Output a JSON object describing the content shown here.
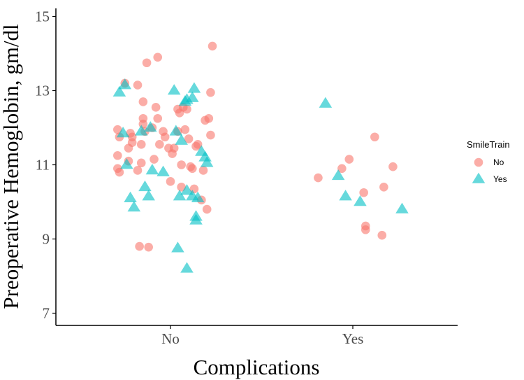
{
  "chart_data": {
    "type": "scatter",
    "title": "",
    "xlabel": "Complications",
    "ylabel": "Preoperative Hemoglobin, gm/dl",
    "categories": [
      "No",
      "Yes"
    ],
    "yticks": [
      7,
      9,
      11,
      13,
      15
    ],
    "ylim": [
      6.9,
      15.3
    ],
    "grid": false,
    "legend": {
      "title": "SmileTrain",
      "placement": "right",
      "entries": [
        {
          "label": "No",
          "color": "#f8766d",
          "shape": "circle"
        },
        {
          "label": "Yes",
          "color": "#00bfc4",
          "shape": "triangle"
        }
      ]
    },
    "series": [
      {
        "name": "No",
        "color": "#f8766d",
        "shape": "circle",
        "points": [
          {
            "x": 0.71,
            "y": 11.95
          },
          {
            "x": 0.72,
            "y": 11.75
          },
          {
            "x": 0.71,
            "y": 11.25
          },
          {
            "x": 0.71,
            "y": 10.9
          },
          {
            "x": 0.72,
            "y": 10.8
          },
          {
            "x": 0.75,
            "y": 13.2
          },
          {
            "x": 0.77,
            "y": 11.45
          },
          {
            "x": 0.77,
            "y": 11.1
          },
          {
            "x": 0.78,
            "y": 11.85
          },
          {
            "x": 0.79,
            "y": 11.6
          },
          {
            "x": 0.79,
            "y": 11.75
          },
          {
            "x": 0.82,
            "y": 13.15
          },
          {
            "x": 0.82,
            "y": 10.85
          },
          {
            "x": 0.84,
            "y": 11.55
          },
          {
            "x": 0.84,
            "y": 11.05
          },
          {
            "x": 0.85,
            "y": 12.7
          },
          {
            "x": 0.85,
            "y": 12.25
          },
          {
            "x": 0.85,
            "y": 12.1
          },
          {
            "x": 0.86,
            "y": 11.9
          },
          {
            "x": 0.87,
            "y": 13.75
          },
          {
            "x": 0.83,
            "y": 8.8
          },
          {
            "x": 0.88,
            "y": 8.78
          },
          {
            "x": 0.9,
            "y": 12.0
          },
          {
            "x": 0.91,
            "y": 11.15
          },
          {
            "x": 0.92,
            "y": 12.55
          },
          {
            "x": 0.93,
            "y": 12.25
          },
          {
            "x": 0.93,
            "y": 13.9
          },
          {
            "x": 0.94,
            "y": 11.55
          },
          {
            "x": 0.96,
            "y": 11.9
          },
          {
            "x": 0.97,
            "y": 11.75
          },
          {
            "x": 0.99,
            "y": 11.45
          },
          {
            "x": 1.0,
            "y": 10.55
          },
          {
            "x": 1.01,
            "y": 11.3
          },
          {
            "x": 1.02,
            "y": 11.45
          },
          {
            "x": 1.04,
            "y": 12.5
          },
          {
            "x": 1.04,
            "y": 11.9
          },
          {
            "x": 1.05,
            "y": 12.4
          },
          {
            "x": 1.06,
            "y": 11.0
          },
          {
            "x": 1.06,
            "y": 10.4
          },
          {
            "x": 1.07,
            "y": 12.55
          },
          {
            "x": 1.08,
            "y": 11.95
          },
          {
            "x": 1.09,
            "y": 12.5
          },
          {
            "x": 1.1,
            "y": 11.7
          },
          {
            "x": 1.11,
            "y": 10.95
          },
          {
            "x": 1.12,
            "y": 10.9
          },
          {
            "x": 1.13,
            "y": 10.35
          },
          {
            "x": 1.14,
            "y": 11.5
          },
          {
            "x": 1.15,
            "y": 11.55
          },
          {
            "x": 1.17,
            "y": 10.05
          },
          {
            "x": 1.18,
            "y": 10.85
          },
          {
            "x": 1.19,
            "y": 12.2
          },
          {
            "x": 1.2,
            "y": 9.8
          },
          {
            "x": 1.21,
            "y": 12.25
          },
          {
            "x": 1.22,
            "y": 12.95
          },
          {
            "x": 1.22,
            "y": 11.8
          },
          {
            "x": 1.23,
            "y": 14.2
          },
          {
            "x": 1.81,
            "y": 10.65
          },
          {
            "x": 1.94,
            "y": 10.9
          },
          {
            "x": 1.98,
            "y": 11.15
          },
          {
            "x": 2.06,
            "y": 10.25
          },
          {
            "x": 2.07,
            "y": 9.35
          },
          {
            "x": 2.07,
            "y": 9.25
          },
          {
            "x": 2.12,
            "y": 11.75
          },
          {
            "x": 2.16,
            "y": 9.1
          },
          {
            "x": 2.17,
            "y": 10.4
          },
          {
            "x": 2.22,
            "y": 10.95
          }
        ]
      },
      {
        "name": "Yes",
        "color": "#00bfc4",
        "shape": "triangle",
        "points": [
          {
            "x": 0.72,
            "y": 12.95
          },
          {
            "x": 0.74,
            "y": 11.85
          },
          {
            "x": 0.75,
            "y": 13.15
          },
          {
            "x": 0.76,
            "y": 11.0
          },
          {
            "x": 0.78,
            "y": 10.1
          },
          {
            "x": 0.8,
            "y": 9.85
          },
          {
            "x": 0.84,
            "y": 11.9
          },
          {
            "x": 0.86,
            "y": 10.4
          },
          {
            "x": 0.88,
            "y": 10.15
          },
          {
            "x": 0.89,
            "y": 12.0
          },
          {
            "x": 0.9,
            "y": 10.85
          },
          {
            "x": 0.96,
            "y": 10.8
          },
          {
            "x": 1.02,
            "y": 13.0
          },
          {
            "x": 1.03,
            "y": 11.9
          },
          {
            "x": 1.04,
            "y": 8.75
          },
          {
            "x": 1.05,
            "y": 10.15
          },
          {
            "x": 1.06,
            "y": 11.65
          },
          {
            "x": 1.08,
            "y": 12.7
          },
          {
            "x": 1.09,
            "y": 12.75
          },
          {
            "x": 1.09,
            "y": 10.3
          },
          {
            "x": 1.09,
            "y": 8.2
          },
          {
            "x": 1.12,
            "y": 12.8
          },
          {
            "x": 1.12,
            "y": 10.15
          },
          {
            "x": 1.13,
            "y": 13.05
          },
          {
            "x": 1.14,
            "y": 9.6
          },
          {
            "x": 1.14,
            "y": 9.5
          },
          {
            "x": 1.15,
            "y": 10.1
          },
          {
            "x": 1.17,
            "y": 11.35
          },
          {
            "x": 1.19,
            "y": 11.2
          },
          {
            "x": 1.2,
            "y": 11.05
          },
          {
            "x": 1.85,
            "y": 12.65
          },
          {
            "x": 1.92,
            "y": 10.7
          },
          {
            "x": 1.96,
            "y": 10.15
          },
          {
            "x": 2.04,
            "y": 10.0
          },
          {
            "x": 2.27,
            "y": 9.8
          }
        ]
      }
    ]
  }
}
